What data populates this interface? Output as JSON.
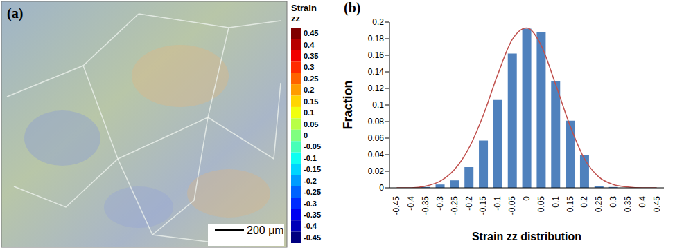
{
  "panel_a": {
    "label": "(a)",
    "scale_bar": "200 μm",
    "colorbar": {
      "title": "Strain zz",
      "range": [
        -0.45,
        0.45
      ],
      "ticks": [
        0.45,
        0.4,
        0.35,
        0.3,
        0.25,
        0.2,
        0.15,
        0.1,
        0.05,
        0,
        -0.05,
        -0.1,
        -0.15,
        -0.2,
        -0.25,
        -0.3,
        -0.35,
        -0.4,
        -0.45
      ]
    }
  },
  "chart_data": {
    "type": "bar",
    "panel": "(b)",
    "x_label": "Strain zz distribution",
    "y_label": "Fraction",
    "categories": [
      "-0.45",
      "-0.4",
      "-0.35",
      "-0.3",
      "-0.25",
      "-0.2",
      "-0.15",
      "-0.1",
      "-0.05",
      "0",
      "0.05",
      "0.1",
      "0.15",
      "0.2",
      "0.25",
      "0.3",
      "0.35",
      "0.4",
      "0.45"
    ],
    "series": [
      {
        "type": "bar",
        "color": "#4f81bd",
        "values": [
          0,
          0,
          0.001,
          0.004,
          0.009,
          0.025,
          0.057,
          0.106,
          0.162,
          0.192,
          0.188,
          0.129,
          0.081,
          0.04,
          0.002,
          0.001,
          0,
          0,
          0
        ]
      },
      {
        "type": "line",
        "color": "#c0504d",
        "values": [
          0,
          0,
          0.002,
          0.008,
          0.022,
          0.048,
          0.088,
          0.137,
          0.179,
          0.193,
          0.172,
          0.125,
          0.075,
          0.035,
          0.013,
          0.004,
          0.001,
          0,
          0
        ]
      }
    ],
    "ylim": [
      0,
      0.2
    ],
    "yticks": [
      0,
      0.02,
      0.04,
      0.06,
      0.08,
      0.1,
      0.12,
      0.14,
      0.16,
      0.18,
      0.2
    ],
    "grid": false
  }
}
